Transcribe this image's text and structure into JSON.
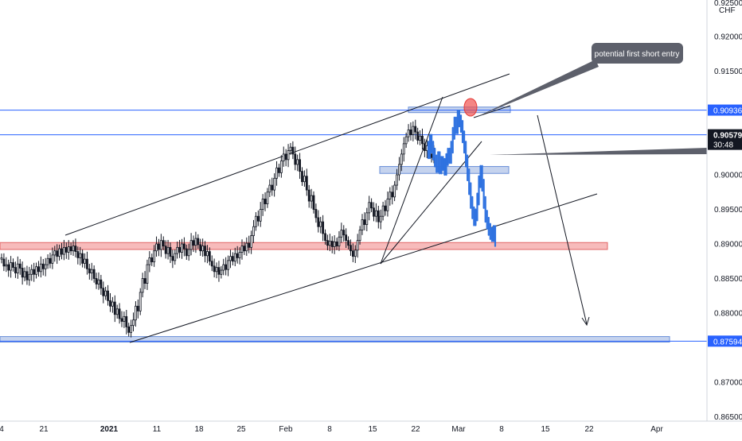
{
  "chart_data": {
    "type": "candlestick",
    "currency_label": "CHF",
    "y_axis_ticks": [
      "0.92000",
      "0.91500",
      "0.90000",
      "0.89500",
      "0.89000",
      "0.88500",
      "0.88000",
      "0.87000",
      "0.86500"
    ],
    "y_axis_top_partial": "0.92500",
    "ylim": [
      0.865,
      0.925
    ],
    "x_axis_ticks": [
      "4",
      "21",
      "2021",
      "11",
      "18",
      "25",
      "Feb",
      "8",
      "15",
      "22",
      "Mar",
      "8",
      "15",
      "22",
      "Apr"
    ],
    "price_badges": [
      {
        "label": "0.90936",
        "value": 0.90936,
        "style": "blue"
      },
      {
        "label": "0.90579",
        "sub": "30:48",
        "value": 0.90579,
        "style": "dark"
      },
      {
        "label": "0.87594",
        "value": 0.87594,
        "style": "blue"
      }
    ],
    "horizontal_lines": [
      {
        "value": 0.90936,
        "color": "#2962ff"
      },
      {
        "value": 0.90579,
        "color": "#2962ff"
      },
      {
        "value": 0.87594,
        "color": "#2962ff"
      }
    ],
    "zones": [
      {
        "name": "upper-resistance-zone",
        "y_top": 0.9098,
        "y_bottom": 0.909,
        "color": "#b2c4e8"
      },
      {
        "name": "mid-zone",
        "y_top": 0.9012,
        "y_bottom": 0.9002,
        "color": "#b2c4e8"
      },
      {
        "name": "support-zone",
        "y_top": 0.8902,
        "y_bottom": 0.8892,
        "color": "#f4a4a4"
      },
      {
        "name": "bottom-zone",
        "y_top": 0.8766,
        "y_bottom": 0.8758,
        "color": "#b2c4e8"
      }
    ],
    "annotations": [
      {
        "text": "potential first short entry"
      }
    ],
    "candles": [
      [
        0.8878,
        0.888
      ],
      [
        0.8878,
        0.8868
      ],
      [
        0.8868,
        0.887
      ],
      [
        0.887,
        0.8862
      ],
      [
        0.8862,
        0.8873
      ],
      [
        0.8873,
        0.8866
      ],
      [
        0.8866,
        0.8858
      ],
      [
        0.8858,
        0.8871
      ],
      [
        0.8871,
        0.8865
      ],
      [
        0.8865,
        0.8852
      ],
      [
        0.8852,
        0.886
      ],
      [
        0.886,
        0.8848
      ],
      [
        0.8848,
        0.8856
      ],
      [
        0.8856,
        0.8863
      ],
      [
        0.8863,
        0.8856
      ],
      [
        0.8856,
        0.8867
      ],
      [
        0.8867,
        0.886
      ],
      [
        0.886,
        0.8871
      ],
      [
        0.8871,
        0.8864
      ],
      [
        0.8864,
        0.887
      ],
      [
        0.887,
        0.8879
      ],
      [
        0.8879,
        0.8872
      ],
      [
        0.8872,
        0.8884
      ],
      [
        0.8884,
        0.889
      ],
      [
        0.889,
        0.8882
      ],
      [
        0.8882,
        0.8893
      ],
      [
        0.8893,
        0.8885
      ],
      [
        0.8885,
        0.8895
      ],
      [
        0.8895,
        0.8888
      ],
      [
        0.8888,
        0.8896
      ],
      [
        0.8896,
        0.889
      ],
      [
        0.889,
        0.8897
      ],
      [
        0.8897,
        0.8889
      ],
      [
        0.8889,
        0.888
      ],
      [
        0.888,
        0.8886
      ],
      [
        0.8886,
        0.8872
      ],
      [
        0.8872,
        0.8878
      ],
      [
        0.8878,
        0.8864
      ],
      [
        0.8864,
        0.8858
      ],
      [
        0.8858,
        0.8863
      ],
      [
        0.8863,
        0.885
      ],
      [
        0.885,
        0.8842
      ],
      [
        0.8842,
        0.8848
      ],
      [
        0.8848,
        0.8836
      ],
      [
        0.8836,
        0.8825
      ],
      [
        0.8825,
        0.8832
      ],
      [
        0.8832,
        0.8818
      ],
      [
        0.8818,
        0.881
      ],
      [
        0.881,
        0.8816
      ],
      [
        0.8816,
        0.8798
      ],
      [
        0.8798,
        0.8806
      ],
      [
        0.8806,
        0.8792
      ],
      [
        0.8792,
        0.8788
      ],
      [
        0.8788,
        0.8795
      ],
      [
        0.8795,
        0.878
      ],
      [
        0.878,
        0.8772
      ],
      [
        0.8772,
        0.8782
      ],
      [
        0.8782,
        0.879
      ],
      [
        0.879,
        0.881
      ],
      [
        0.881,
        0.8803
      ],
      [
        0.8803,
        0.883
      ],
      [
        0.883,
        0.885
      ],
      [
        0.885,
        0.8843
      ],
      [
        0.8843,
        0.887
      ],
      [
        0.887,
        0.888
      ],
      [
        0.888,
        0.8874
      ],
      [
        0.8874,
        0.889
      ],
      [
        0.889,
        0.89
      ],
      [
        0.89,
        0.8892
      ],
      [
        0.8892,
        0.8905
      ],
      [
        0.8905,
        0.8897
      ],
      [
        0.8897,
        0.8886
      ],
      [
        0.8886,
        0.8895
      ],
      [
        0.8895,
        0.8882
      ],
      [
        0.8882,
        0.8876
      ],
      [
        0.8876,
        0.8886
      ],
      [
        0.8886,
        0.8895
      ],
      [
        0.8895,
        0.8888
      ],
      [
        0.8888,
        0.89
      ],
      [
        0.89,
        0.8893
      ],
      [
        0.8893,
        0.8883
      ],
      [
        0.8883,
        0.8892
      ],
      [
        0.8892,
        0.8905
      ],
      [
        0.8905,
        0.8898
      ],
      [
        0.8898,
        0.8908
      ],
      [
        0.8908,
        0.8899
      ],
      [
        0.8899,
        0.889
      ],
      [
        0.889,
        0.8897
      ],
      [
        0.8897,
        0.8883
      ],
      [
        0.8883,
        0.8889
      ],
      [
        0.8889,
        0.8875
      ],
      [
        0.8875,
        0.8868
      ],
      [
        0.8868,
        0.886
      ],
      [
        0.886,
        0.8866
      ],
      [
        0.8866,
        0.8856
      ],
      [
        0.8856,
        0.8862
      ],
      [
        0.8862,
        0.887
      ],
      [
        0.887,
        0.8863
      ],
      [
        0.8863,
        0.8876
      ],
      [
        0.8876,
        0.8882
      ],
      [
        0.8882,
        0.8875
      ],
      [
        0.8875,
        0.8886
      ],
      [
        0.8886,
        0.888
      ],
      [
        0.888,
        0.8888
      ],
      [
        0.8888,
        0.8897
      ],
      [
        0.8897,
        0.889
      ],
      [
        0.889,
        0.8901
      ],
      [
        0.8901,
        0.8895
      ],
      [
        0.8895,
        0.8912
      ],
      [
        0.8912,
        0.8925
      ],
      [
        0.8925,
        0.894
      ],
      [
        0.894,
        0.8933
      ],
      [
        0.8933,
        0.895
      ],
      [
        0.895,
        0.8965
      ],
      [
        0.8965,
        0.8958
      ],
      [
        0.8958,
        0.8975
      ],
      [
        0.8975,
        0.8985
      ],
      [
        0.8985,
        0.8978
      ],
      [
        0.8978,
        0.8995
      ],
      [
        0.8995,
        0.901
      ],
      [
        0.901,
        0.9003
      ],
      [
        0.9003,
        0.902
      ],
      [
        0.902,
        0.903
      ],
      [
        0.903,
        0.9022
      ],
      [
        0.9022,
        0.9035
      ],
      [
        0.9035,
        0.904
      ],
      [
        0.904,
        0.903
      ],
      [
        0.903,
        0.9015
      ],
      [
        0.9015,
        0.9022
      ],
      [
        0.9022,
        0.9005
      ],
      [
        0.9005,
        0.899
      ],
      [
        0.899,
        0.8998
      ],
      [
        0.8998,
        0.8978
      ],
      [
        0.8978,
        0.8962
      ],
      [
        0.8962,
        0.897
      ],
      [
        0.897,
        0.895
      ],
      [
        0.895,
        0.8938
      ],
      [
        0.8938,
        0.8925
      ],
      [
        0.8925,
        0.8932
      ],
      [
        0.8932,
        0.8915
      ],
      [
        0.8915,
        0.8905
      ],
      [
        0.8905,
        0.8898
      ],
      [
        0.8898,
        0.8904
      ],
      [
        0.8904,
        0.8896
      ],
      [
        0.8896,
        0.8903
      ],
      [
        0.8903,
        0.8897
      ],
      [
        0.8897,
        0.891
      ],
      [
        0.891,
        0.892
      ],
      [
        0.892,
        0.8913
      ],
      [
        0.8913,
        0.8905
      ],
      [
        0.8905,
        0.8898
      ],
      [
        0.8898,
        0.889
      ],
      [
        0.889,
        0.8882
      ],
      [
        0.8882,
        0.8891
      ],
      [
        0.8891,
        0.8905
      ],
      [
        0.8905,
        0.892
      ],
      [
        0.892,
        0.8935
      ],
      [
        0.8935,
        0.8928
      ],
      [
        0.8928,
        0.8945
      ],
      [
        0.8945,
        0.896
      ],
      [
        0.896,
        0.8952
      ],
      [
        0.8952,
        0.894
      ],
      [
        0.894,
        0.8948
      ],
      [
        0.8948,
        0.8932
      ],
      [
        0.8932,
        0.894
      ],
      [
        0.894,
        0.8955
      ],
      [
        0.8955,
        0.8948
      ],
      [
        0.8948,
        0.8965
      ],
      [
        0.8965,
        0.8975
      ],
      [
        0.8975,
        0.8968
      ],
      [
        0.8968,
        0.8985
      ],
      [
        0.8985,
        0.9
      ],
      [
        0.9,
        0.9015
      ],
      [
        0.9015,
        0.903
      ],
      [
        0.903,
        0.9045
      ],
      [
        0.9045,
        0.9055
      ],
      [
        0.9055,
        0.9065
      ],
      [
        0.9065,
        0.9058
      ],
      [
        0.9058,
        0.907
      ],
      [
        0.907,
        0.9062
      ],
      [
        0.9062,
        0.905
      ],
      [
        0.905,
        0.9056
      ],
      [
        0.9056,
        0.9045
      ],
      [
        0.9045,
        0.9035
      ],
      [
        0.9035,
        0.9042
      ],
      [
        0.9042,
        0.903
      ],
      [
        0.903,
        0.9025
      ],
      [
        0.9025,
        0.9032
      ]
    ],
    "overlay_path": [
      [
        0.904,
        0.9032
      ],
      [
        0.9032,
        0.905
      ],
      [
        0.905,
        0.904
      ],
      [
        0.904,
        0.903
      ],
      [
        0.903,
        0.902
      ],
      [
        0.902,
        0.9012
      ],
      [
        0.9012,
        0.9025
      ],
      [
        0.9025,
        0.901
      ],
      [
        0.901,
        0.9018
      ],
      [
        0.9018,
        0.9015
      ],
      [
        0.9015,
        0.9008
      ],
      [
        0.9008,
        0.9022
      ],
      [
        0.9022,
        0.903
      ],
      [
        0.903,
        0.9025
      ],
      [
        0.9025,
        0.904
      ],
      [
        0.904,
        0.906
      ],
      [
        0.906,
        0.9075
      ],
      [
        0.9075,
        0.9068
      ],
      [
        0.9068,
        0.9085
      ],
      [
        0.9085,
        0.9078
      ],
      [
        0.9078,
        0.907
      ],
      [
        0.907,
        0.9055
      ],
      [
        0.9055,
        0.904
      ],
      [
        0.904,
        0.902
      ],
      [
        0.902,
        0.9
      ],
      [
        0.9,
        0.898
      ],
      [
        0.898,
        0.896
      ],
      [
        0.896,
        0.8945
      ],
      [
        0.8945,
        0.8935
      ],
      [
        0.8935,
        0.8942
      ],
      [
        0.8942,
        0.8965
      ],
      [
        0.8965,
        0.899
      ],
      [
        0.899,
        0.9005
      ],
      [
        0.9005,
        0.8985
      ],
      [
        0.8985,
        0.896
      ],
      [
        0.896,
        0.894
      ],
      [
        0.894,
        0.893
      ],
      [
        0.893,
        0.8921
      ],
      [
        0.8921,
        0.8915
      ],
      [
        0.8915,
        0.8912
      ],
      [
        0.8912,
        0.8918
      ],
      [
        0.8918,
        0.8905
      ]
    ]
  }
}
